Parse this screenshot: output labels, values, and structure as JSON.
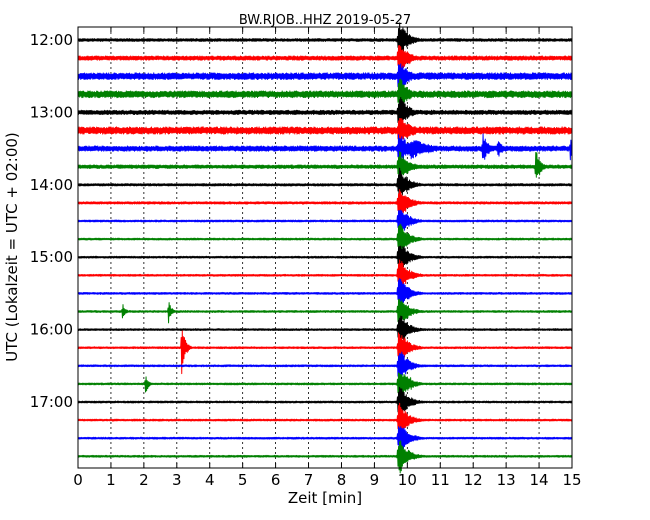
{
  "chart_data": {
    "type": "line",
    "title": "BW.RJOB..HHZ 2019-05-27",
    "xlabel": "Zeit  [min]",
    "ylabel": "UTC (Lokalzeit = UTC + 02:00)",
    "xlim": [
      0,
      15
    ],
    "x_ticks": [
      "0",
      "1",
      "2",
      "3",
      "4",
      "5",
      "6",
      "7",
      "8",
      "9",
      "10",
      "11",
      "12",
      "13",
      "14",
      "15"
    ],
    "y_ticks": [
      "12:00",
      "13:00",
      "14:00",
      "15:00",
      "16:00",
      "17:00"
    ],
    "grid": true,
    "trace_interval_min": 15,
    "color_cycle": [
      "#000000",
      "#ff0000",
      "#0000ff",
      "#008000"
    ],
    "traces": [
      {
        "start": "12:00",
        "color": "#000000",
        "base_amplitude": 0.12,
        "events": [
          {
            "t": 9.75,
            "amp": 1.6,
            "dur": 0.25
          }
        ]
      },
      {
        "start": "12:15",
        "color": "#ff0000",
        "base_amplitude": 0.18,
        "events": [
          {
            "t": 9.75,
            "amp": 1.6,
            "dur": 0.25
          }
        ]
      },
      {
        "start": "12:30",
        "color": "#0000ff",
        "base_amplitude": 0.28,
        "events": [
          {
            "t": 9.75,
            "amp": 1.6,
            "dur": 0.25
          }
        ]
      },
      {
        "start": "12:45",
        "color": "#008000",
        "base_amplitude": 0.28,
        "events": [
          {
            "t": 9.75,
            "amp": 1.6,
            "dur": 0.25
          }
        ]
      },
      {
        "start": "13:00",
        "color": "#000000",
        "base_amplitude": 0.18,
        "events": [
          {
            "t": 9.75,
            "amp": 1.6,
            "dur": 0.25
          }
        ]
      },
      {
        "start": "13:15",
        "color": "#ff0000",
        "base_amplitude": 0.3,
        "events": [
          {
            "t": 9.75,
            "amp": 1.6,
            "dur": 0.25
          },
          {
            "t": 9.9,
            "amp": 0.8,
            "dur": 0.4
          }
        ]
      },
      {
        "start": "13:30",
        "color": "#0000ff",
        "base_amplitude": 0.22,
        "events": [
          {
            "t": 9.75,
            "amp": 1.6,
            "dur": 0.25
          },
          {
            "t": 10.1,
            "amp": 0.9,
            "dur": 0.6
          },
          {
            "t": 12.3,
            "amp": 1.3,
            "dur": 0.15
          },
          {
            "t": 12.75,
            "amp": 0.8,
            "dur": 0.15
          },
          {
            "t": 14.95,
            "amp": 1.3,
            "dur": 0.08
          }
        ]
      },
      {
        "start": "13:45",
        "color": "#008000",
        "base_amplitude": 0.15,
        "events": [
          {
            "t": 9.75,
            "amp": 1.6,
            "dur": 0.25
          },
          {
            "t": 13.9,
            "amp": 1.8,
            "dur": 0.12
          }
        ]
      },
      {
        "start": "14:00",
        "color": "#000000",
        "base_amplitude": 0.1,
        "events": [
          {
            "t": 9.75,
            "amp": 1.6,
            "dur": 0.25
          }
        ]
      },
      {
        "start": "14:15",
        "color": "#ff0000",
        "base_amplitude": 0.1,
        "events": [
          {
            "t": 9.75,
            "amp": 1.6,
            "dur": 0.25
          }
        ]
      },
      {
        "start": "14:30",
        "color": "#0000ff",
        "base_amplitude": 0.08,
        "events": [
          {
            "t": 9.75,
            "amp": 1.6,
            "dur": 0.25
          }
        ]
      },
      {
        "start": "14:45",
        "color": "#008000",
        "base_amplitude": 0.08,
        "events": [
          {
            "t": 9.75,
            "amp": 1.6,
            "dur": 0.25
          }
        ]
      },
      {
        "start": "15:00",
        "color": "#000000",
        "base_amplitude": 0.08,
        "events": [
          {
            "t": 9.75,
            "amp": 1.6,
            "dur": 0.25
          }
        ]
      },
      {
        "start": "15:15",
        "color": "#ff0000",
        "base_amplitude": 0.08,
        "events": [
          {
            "t": 9.75,
            "amp": 1.6,
            "dur": 0.25
          }
        ]
      },
      {
        "start": "15:30",
        "color": "#0000ff",
        "base_amplitude": 0.08,
        "events": [
          {
            "t": 9.75,
            "amp": 1.6,
            "dur": 0.25
          }
        ]
      },
      {
        "start": "15:45",
        "color": "#008000",
        "base_amplitude": 0.08,
        "events": [
          {
            "t": 9.75,
            "amp": 1.6,
            "dur": 0.25
          },
          {
            "t": 1.35,
            "amp": 0.8,
            "dur": 0.08
          },
          {
            "t": 2.75,
            "amp": 1.0,
            "dur": 0.08
          }
        ]
      },
      {
        "start": "16:00",
        "color": "#000000",
        "base_amplitude": 0.08,
        "events": [
          {
            "t": 9.75,
            "amp": 1.6,
            "dur": 0.25
          }
        ]
      },
      {
        "start": "16:15",
        "color": "#ff0000",
        "base_amplitude": 0.08,
        "events": [
          {
            "t": 9.75,
            "amp": 1.6,
            "dur": 0.25
          },
          {
            "t": 3.15,
            "amp": 2.2,
            "dur": 0.1
          }
        ]
      },
      {
        "start": "16:30",
        "color": "#0000ff",
        "base_amplitude": 0.08,
        "events": [
          {
            "t": 9.75,
            "amp": 1.6,
            "dur": 0.25
          }
        ]
      },
      {
        "start": "16:45",
        "color": "#008000",
        "base_amplitude": 0.08,
        "events": [
          {
            "t": 9.75,
            "amp": 1.6,
            "dur": 0.25
          },
          {
            "t": 2.05,
            "amp": 0.9,
            "dur": 0.08
          },
          {
            "t": 10.1,
            "amp": 0.7,
            "dur": 0.08
          }
        ]
      },
      {
        "start": "17:00",
        "color": "#000000",
        "base_amplitude": 0.08,
        "events": [
          {
            "t": 9.75,
            "amp": 1.6,
            "dur": 0.25
          }
        ]
      },
      {
        "start": "17:15",
        "color": "#ff0000",
        "base_amplitude": 0.08,
        "events": [
          {
            "t": 9.75,
            "amp": 1.6,
            "dur": 0.25
          }
        ]
      },
      {
        "start": "17:30",
        "color": "#0000ff",
        "base_amplitude": 0.08,
        "events": [
          {
            "t": 9.75,
            "amp": 1.6,
            "dur": 0.25
          }
        ]
      },
      {
        "start": "17:45",
        "color": "#008000",
        "base_amplitude": 0.08,
        "events": [
          {
            "t": 9.75,
            "amp": 1.6,
            "dur": 0.25
          }
        ]
      }
    ]
  }
}
